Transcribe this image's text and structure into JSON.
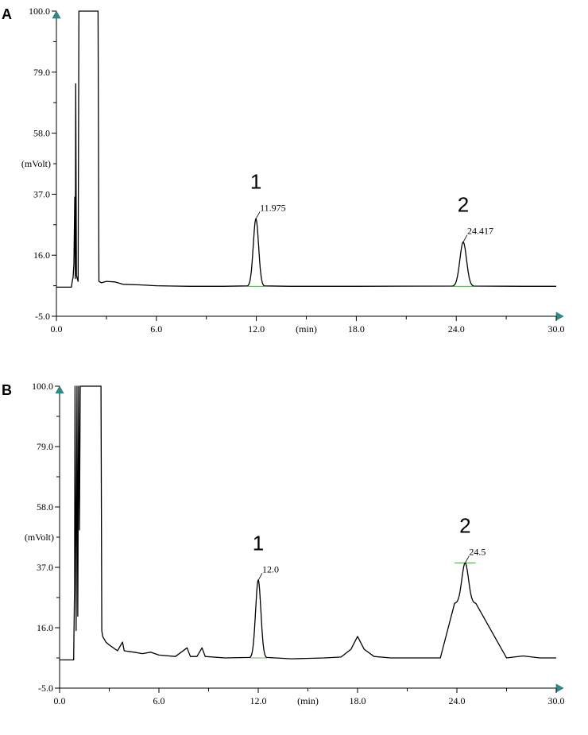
{
  "chart_data": [
    {
      "type": "line",
      "panel_label": "A",
      "xlabel": "(min)",
      "ylabel": "(mVolt)",
      "xlim": [
        0,
        30
      ],
      "ylim": [
        -5,
        100
      ],
      "x_ticks": [
        "0.0",
        "6.0",
        "12.0",
        "18.0",
        "24.0",
        "30.0"
      ],
      "y_ticks": [
        "100.0",
        "79.0",
        "58.0",
        "37.0",
        "16.0",
        "-5.0"
      ],
      "peaks": [
        {
          "number": "1",
          "retention_label": "11.975",
          "rt": 11.975,
          "height": 28.5,
          "width": 0.16
        },
        {
          "number": "2",
          "retention_label": "24.417",
          "rt": 24.417,
          "height": 20.5,
          "width": 0.2
        }
      ],
      "trace": [
        [
          0.0,
          5.0
        ],
        [
          0.9,
          5.0
        ],
        [
          0.95,
          7.0
        ],
        [
          1.0,
          8.5
        ],
        [
          1.05,
          13.0
        ],
        [
          1.1,
          36.0
        ],
        [
          1.13,
          8.0
        ],
        [
          1.16,
          75.0
        ],
        [
          1.2,
          9.0
        ],
        [
          1.25,
          8.0
        ],
        [
          1.3,
          7.0
        ],
        [
          1.35,
          100.0
        ],
        [
          2.5,
          100.0
        ],
        [
          2.55,
          7.0
        ],
        [
          2.7,
          6.5
        ],
        [
          3.0,
          7.0
        ],
        [
          3.5,
          6.8
        ],
        [
          4.0,
          6.0
        ],
        [
          5.0,
          5.8
        ],
        [
          6.0,
          5.5
        ],
        [
          7.0,
          5.4
        ],
        [
          8.0,
          5.3
        ],
        [
          10.0,
          5.3
        ],
        [
          11.5,
          5.3
        ],
        [
          11.975,
          28.5
        ],
        [
          12.45,
          5.3
        ],
        [
          14.0,
          5.3
        ],
        [
          18.0,
          5.3
        ],
        [
          23.8,
          5.3
        ],
        [
          24.417,
          20.5
        ],
        [
          25.05,
          5.3
        ],
        [
          28.0,
          5.3
        ],
        [
          30.0,
          5.3
        ]
      ]
    },
    {
      "type": "line",
      "panel_label": "B",
      "xlabel": "(min)",
      "ylabel": "(mVolt)",
      "xlim": [
        0,
        30
      ],
      "ylim": [
        -5,
        100
      ],
      "x_ticks": [
        "0.0",
        "6.0",
        "12.0",
        "18.0",
        "24.0",
        "30.0"
      ],
      "y_ticks": [
        "100.0",
        "79.0",
        "58.0",
        "37.0",
        "16.0",
        "-5.0"
      ],
      "peaks": [
        {
          "number": "1",
          "retention_label": "12.0",
          "rt": 12.0,
          "height": 32.5,
          "width": 0.16
        },
        {
          "number": "2",
          "retention_label": "24.5",
          "rt": 24.5,
          "height": 38.5,
          "width": 0.2
        }
      ],
      "trace": [
        [
          0.0,
          4.8
        ],
        [
          0.85,
          4.8
        ],
        [
          0.9,
          30.0
        ],
        [
          0.93,
          100.0
        ],
        [
          1.0,
          15.0
        ],
        [
          1.05,
          100.0
        ],
        [
          1.1,
          20.0
        ],
        [
          1.15,
          100.0
        ],
        [
          1.2,
          50.0
        ],
        [
          1.25,
          100.0
        ],
        [
          1.3,
          100.0
        ],
        [
          2.5,
          100.0
        ],
        [
          2.55,
          15.0
        ],
        [
          2.6,
          13.0
        ],
        [
          2.8,
          11.0
        ],
        [
          3.0,
          10.0
        ],
        [
          3.5,
          8.0
        ],
        [
          3.8,
          11.0
        ],
        [
          3.9,
          8.0
        ],
        [
          4.5,
          7.5
        ],
        [
          5.0,
          7.0
        ],
        [
          5.5,
          7.5
        ],
        [
          6.0,
          6.5
        ],
        [
          7.0,
          6.0
        ],
        [
          7.7,
          9.0
        ],
        [
          7.9,
          6.0
        ],
        [
          8.3,
          6.0
        ],
        [
          8.6,
          9.0
        ],
        [
          8.8,
          6.0
        ],
        [
          10.0,
          5.5
        ],
        [
          11.5,
          5.5
        ],
        [
          12.0,
          32.5
        ],
        [
          12.5,
          5.5
        ],
        [
          14.0,
          5.2
        ],
        [
          16.0,
          5.5
        ],
        [
          17.0,
          5.8
        ],
        [
          17.6,
          8.5
        ],
        [
          18.0,
          13.0
        ],
        [
          18.4,
          8.5
        ],
        [
          19.0,
          6.0
        ],
        [
          20.0,
          5.5
        ],
        [
          23.0,
          5.5
        ],
        [
          24.5,
          38.5
        ],
        [
          25.1,
          5.5
        ],
        [
          27.0,
          5.5
        ],
        [
          28.0,
          6.2
        ],
        [
          29.0,
          5.5
        ],
        [
          30.0,
          5.5
        ]
      ]
    }
  ]
}
